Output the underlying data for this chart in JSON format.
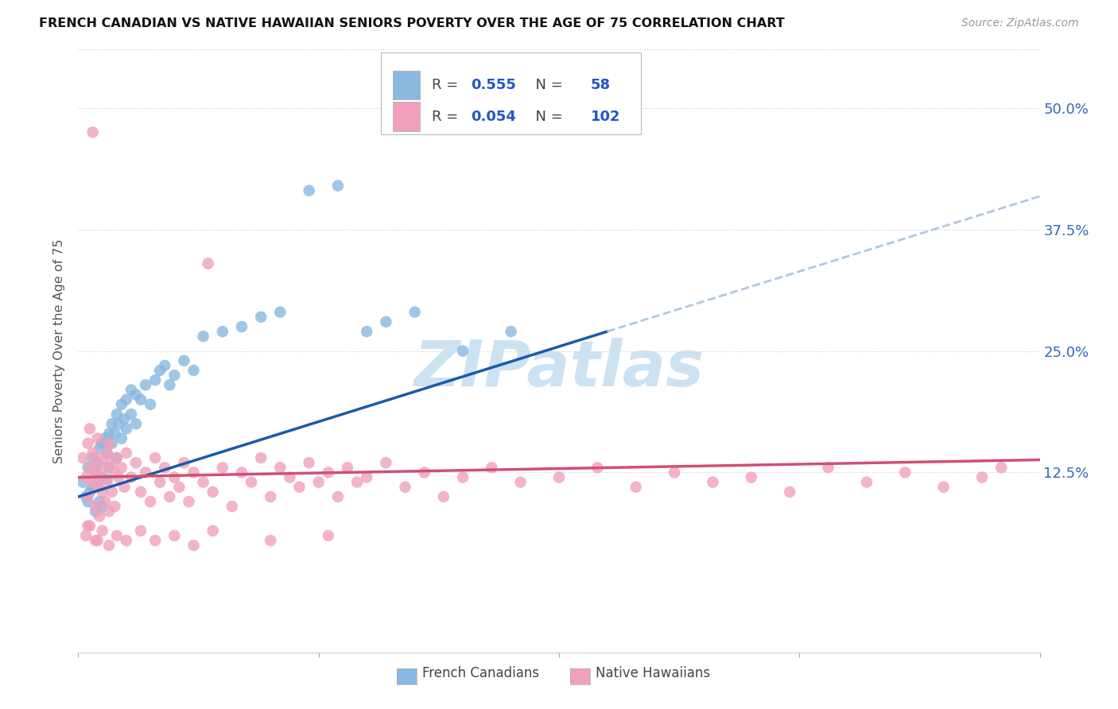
{
  "title": "FRENCH CANADIAN VS NATIVE HAWAIIAN SENIORS POVERTY OVER THE AGE OF 75 CORRELATION CHART",
  "source": "Source: ZipAtlas.com",
  "ylabel": "Seniors Poverty Over the Age of 75",
  "yticks": [
    "12.5%",
    "25.0%",
    "37.5%",
    "50.0%"
  ],
  "ytick_vals": [
    0.125,
    0.25,
    0.375,
    0.5
  ],
  "xlim": [
    0.0,
    1.0
  ],
  "ylim": [
    -0.06,
    0.56
  ],
  "blue_R": "0.555",
  "blue_N": "58",
  "pink_R": "0.054",
  "pink_N": "102",
  "blue_color": "#89b8e0",
  "pink_color": "#f0a0bb",
  "blue_line_color": "#1a5aaa",
  "pink_line_color": "#d05070",
  "dashed_line_color": "#b0c8e0",
  "watermark": "ZIPatlas",
  "watermark_color": "#c8dff0",
  "blue_scatter_x": [
    0.005,
    0.008,
    0.01,
    0.01,
    0.012,
    0.015,
    0.015,
    0.018,
    0.018,
    0.02,
    0.02,
    0.022,
    0.022,
    0.025,
    0.025,
    0.025,
    0.028,
    0.03,
    0.03,
    0.032,
    0.032,
    0.035,
    0.035,
    0.038,
    0.04,
    0.04,
    0.042,
    0.045,
    0.045,
    0.048,
    0.05,
    0.05,
    0.055,
    0.055,
    0.06,
    0.06,
    0.065,
    0.07,
    0.075,
    0.08,
    0.085,
    0.09,
    0.095,
    0.1,
    0.11,
    0.12,
    0.13,
    0.15,
    0.17,
    0.19,
    0.21,
    0.24,
    0.27,
    0.3,
    0.32,
    0.35,
    0.4,
    0.45
  ],
  "blue_scatter_y": [
    0.115,
    0.1,
    0.13,
    0.095,
    0.105,
    0.14,
    0.11,
    0.125,
    0.085,
    0.135,
    0.115,
    0.15,
    0.095,
    0.155,
    0.12,
    0.09,
    0.16,
    0.145,
    0.118,
    0.165,
    0.13,
    0.155,
    0.175,
    0.165,
    0.185,
    0.14,
    0.175,
    0.195,
    0.16,
    0.18,
    0.2,
    0.17,
    0.21,
    0.185,
    0.205,
    0.175,
    0.2,
    0.215,
    0.195,
    0.22,
    0.23,
    0.235,
    0.215,
    0.225,
    0.24,
    0.23,
    0.265,
    0.27,
    0.275,
    0.285,
    0.29,
    0.415,
    0.42,
    0.27,
    0.28,
    0.29,
    0.25,
    0.27
  ],
  "pink_scatter_x": [
    0.005,
    0.008,
    0.01,
    0.01,
    0.012,
    0.012,
    0.015,
    0.015,
    0.015,
    0.018,
    0.018,
    0.02,
    0.02,
    0.02,
    0.022,
    0.022,
    0.025,
    0.025,
    0.028,
    0.028,
    0.03,
    0.03,
    0.032,
    0.032,
    0.035,
    0.035,
    0.038,
    0.038,
    0.04,
    0.042,
    0.045,
    0.048,
    0.05,
    0.055,
    0.06,
    0.065,
    0.07,
    0.075,
    0.08,
    0.085,
    0.09,
    0.095,
    0.1,
    0.105,
    0.11,
    0.115,
    0.12,
    0.13,
    0.135,
    0.14,
    0.15,
    0.16,
    0.17,
    0.18,
    0.19,
    0.2,
    0.21,
    0.22,
    0.23,
    0.24,
    0.25,
    0.26,
    0.27,
    0.28,
    0.29,
    0.3,
    0.32,
    0.34,
    0.36,
    0.38,
    0.4,
    0.43,
    0.46,
    0.5,
    0.54,
    0.58,
    0.62,
    0.66,
    0.7,
    0.74,
    0.78,
    0.82,
    0.86,
    0.9,
    0.94,
    0.96,
    0.008,
    0.012,
    0.018,
    0.025,
    0.032,
    0.04,
    0.05,
    0.065,
    0.08,
    0.1,
    0.12,
    0.14,
    0.2,
    0.26,
    0.01,
    0.02
  ],
  "pink_scatter_y": [
    0.14,
    0.12,
    0.155,
    0.1,
    0.13,
    0.17,
    0.115,
    0.145,
    0.475,
    0.125,
    0.09,
    0.135,
    0.11,
    0.16,
    0.12,
    0.08,
    0.14,
    0.105,
    0.13,
    0.095,
    0.145,
    0.115,
    0.155,
    0.085,
    0.135,
    0.105,
    0.125,
    0.09,
    0.14,
    0.12,
    0.13,
    0.11,
    0.145,
    0.12,
    0.135,
    0.105,
    0.125,
    0.095,
    0.14,
    0.115,
    0.13,
    0.1,
    0.12,
    0.11,
    0.135,
    0.095,
    0.125,
    0.115,
    0.34,
    0.105,
    0.13,
    0.09,
    0.125,
    0.115,
    0.14,
    0.1,
    0.13,
    0.12,
    0.11,
    0.135,
    0.115,
    0.125,
    0.1,
    0.13,
    0.115,
    0.12,
    0.135,
    0.11,
    0.125,
    0.1,
    0.12,
    0.13,
    0.115,
    0.12,
    0.13,
    0.11,
    0.125,
    0.115,
    0.12,
    0.105,
    0.13,
    0.115,
    0.125,
    0.11,
    0.12,
    0.13,
    0.06,
    0.07,
    0.055,
    0.065,
    0.05,
    0.06,
    0.055,
    0.065,
    0.055,
    0.06,
    0.05,
    0.065,
    0.055,
    0.06,
    0.07,
    0.055
  ]
}
